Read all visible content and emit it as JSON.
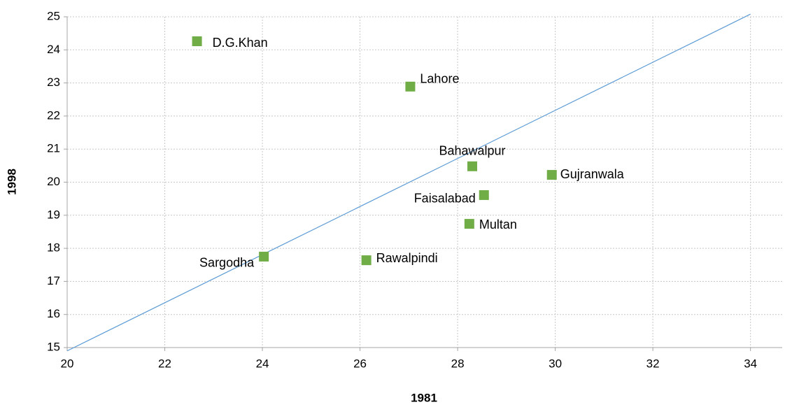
{
  "chart_data": {
    "type": "scatter",
    "xlabel": "1981",
    "ylabel": "1998",
    "points": [
      {
        "label": "D.G.Khan",
        "x": 22.66,
        "y": 24.26
      },
      {
        "label": "Lahore",
        "x": 27.03,
        "y": 22.89
      },
      {
        "label": "Bahawalpur",
        "x": 28.3,
        "y": 20.48
      },
      {
        "label": "Gujranwala",
        "x": 29.93,
        "y": 20.22
      },
      {
        "label": "Faisalabad",
        "x": 28.54,
        "y": 19.61
      },
      {
        "label": "Multan",
        "x": 28.24,
        "y": 18.74
      },
      {
        "label": "Sargodha",
        "x": 24.03,
        "y": 17.75
      },
      {
        "label": "Rawalpindi",
        "x": 26.13,
        "y": 17.64
      }
    ],
    "color": "#70ad47",
    "reference_line": {
      "x": [
        20,
        34
      ],
      "y": [
        14.9,
        25.08
      ],
      "color": "#5b9bd5"
    },
    "xlim": [
      20,
      34.65
    ],
    "ylim": [
      15,
      25
    ],
    "xticks": [
      20,
      22,
      24,
      26,
      28,
      30,
      32,
      34
    ],
    "yticks": [
      15,
      16,
      17,
      18,
      19,
      20,
      21,
      22,
      23,
      24,
      25
    ],
    "grid": true
  }
}
